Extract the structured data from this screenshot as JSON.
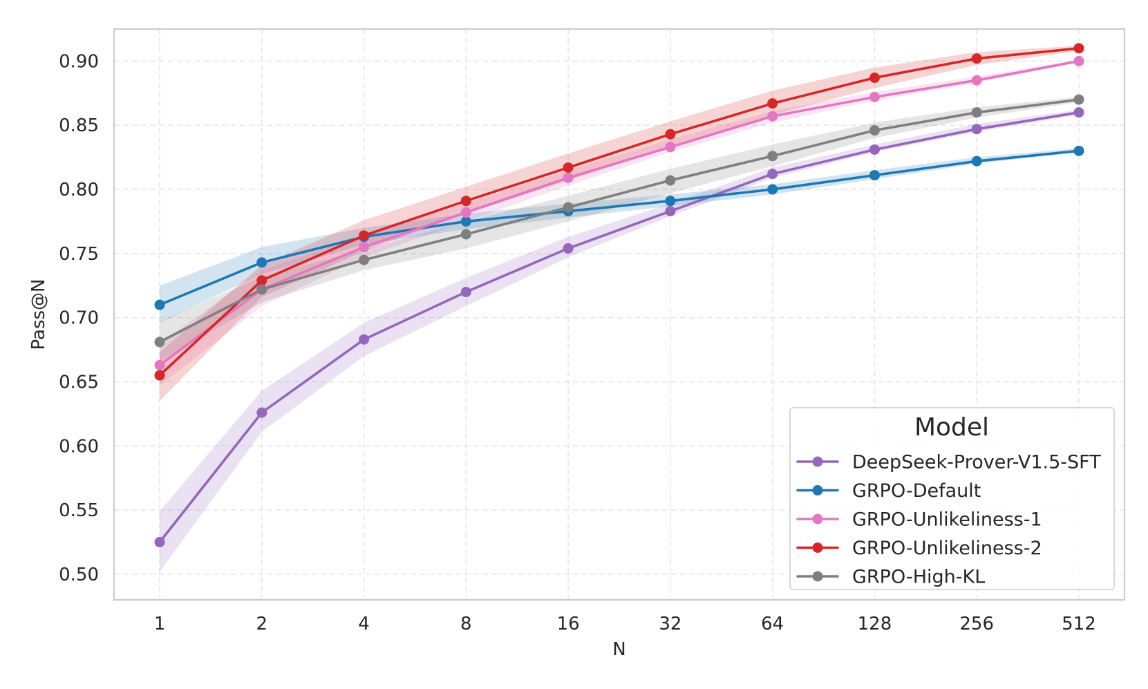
{
  "chart_data": {
    "type": "line",
    "title": "",
    "xlabel": "N",
    "ylabel": "Pass@N",
    "x": [
      1,
      2,
      4,
      8,
      16,
      32,
      64,
      128,
      256,
      512
    ],
    "x_tick_labels": [
      "1",
      "2",
      "4",
      "8",
      "16",
      "32",
      "64",
      "128",
      "256",
      "512"
    ],
    "x_scale": "log2",
    "ylim": [
      0.48,
      0.925
    ],
    "y_ticks": [
      0.5,
      0.55,
      0.6,
      0.65,
      0.7,
      0.75,
      0.8,
      0.85,
      0.9
    ],
    "y_tick_labels": [
      "0.50",
      "0.55",
      "0.60",
      "0.65",
      "0.70",
      "0.75",
      "0.80",
      "0.85",
      "0.90"
    ],
    "grid": true,
    "legend": {
      "title": "Model",
      "placement": "bottom-right"
    },
    "series": [
      {
        "name": "DeepSeek-Prover-V1.5-SFT",
        "color": "#9467bd",
        "values": [
          0.525,
          0.626,
          0.683,
          0.72,
          0.754,
          0.783,
          0.812,
          0.831,
          0.847,
          0.86
        ],
        "lower": [
          0.502,
          0.611,
          0.67,
          0.709,
          0.747,
          0.779,
          0.809,
          0.829,
          0.845,
          0.858
        ],
        "upper": [
          0.549,
          0.643,
          0.696,
          0.731,
          0.763,
          0.789,
          0.817,
          0.835,
          0.851,
          0.862
        ]
      },
      {
        "name": "GRPO-Default",
        "color": "#1f77b4",
        "values": [
          0.71,
          0.743,
          0.763,
          0.775,
          0.783,
          0.791,
          0.8,
          0.811,
          0.822,
          0.83
        ],
        "lower": [
          0.696,
          0.734,
          0.757,
          0.769,
          0.778,
          0.787,
          0.796,
          0.808,
          0.82,
          0.829
        ],
        "upper": [
          0.725,
          0.755,
          0.77,
          0.781,
          0.789,
          0.796,
          0.804,
          0.815,
          0.825,
          0.832
        ]
      },
      {
        "name": "GRPO-Unlikeliness-1",
        "color": "#e377c2",
        "values": [
          0.663,
          0.722,
          0.755,
          0.782,
          0.809,
          0.833,
          0.857,
          0.872,
          0.885,
          0.9
        ],
        "lower": [
          0.647,
          0.709,
          0.747,
          0.775,
          0.803,
          0.829,
          0.852,
          0.869,
          0.883,
          0.899
        ],
        "upper": [
          0.68,
          0.737,
          0.764,
          0.789,
          0.815,
          0.839,
          0.861,
          0.876,
          0.888,
          0.901
        ]
      },
      {
        "name": "GRPO-Unlikeliness-2",
        "color": "#d62728",
        "values": [
          0.655,
          0.729,
          0.764,
          0.791,
          0.817,
          0.843,
          0.867,
          0.887,
          0.902,
          0.91
        ],
        "lower": [
          0.635,
          0.716,
          0.752,
          0.781,
          0.807,
          0.833,
          0.858,
          0.879,
          0.897,
          0.908
        ],
        "upper": [
          0.673,
          0.741,
          0.776,
          0.802,
          0.828,
          0.853,
          0.877,
          0.895,
          0.907,
          0.912
        ]
      },
      {
        "name": "GRPO-High-KL",
        "color": "#7f7f7f",
        "values": [
          0.681,
          0.722,
          0.745,
          0.765,
          0.786,
          0.807,
          0.826,
          0.846,
          0.86,
          0.87
        ],
        "lower": [
          0.666,
          0.712,
          0.737,
          0.754,
          0.775,
          0.797,
          0.818,
          0.84,
          0.856,
          0.868
        ],
        "upper": [
          0.697,
          0.732,
          0.753,
          0.775,
          0.795,
          0.816,
          0.835,
          0.852,
          0.864,
          0.872
        ]
      }
    ]
  }
}
